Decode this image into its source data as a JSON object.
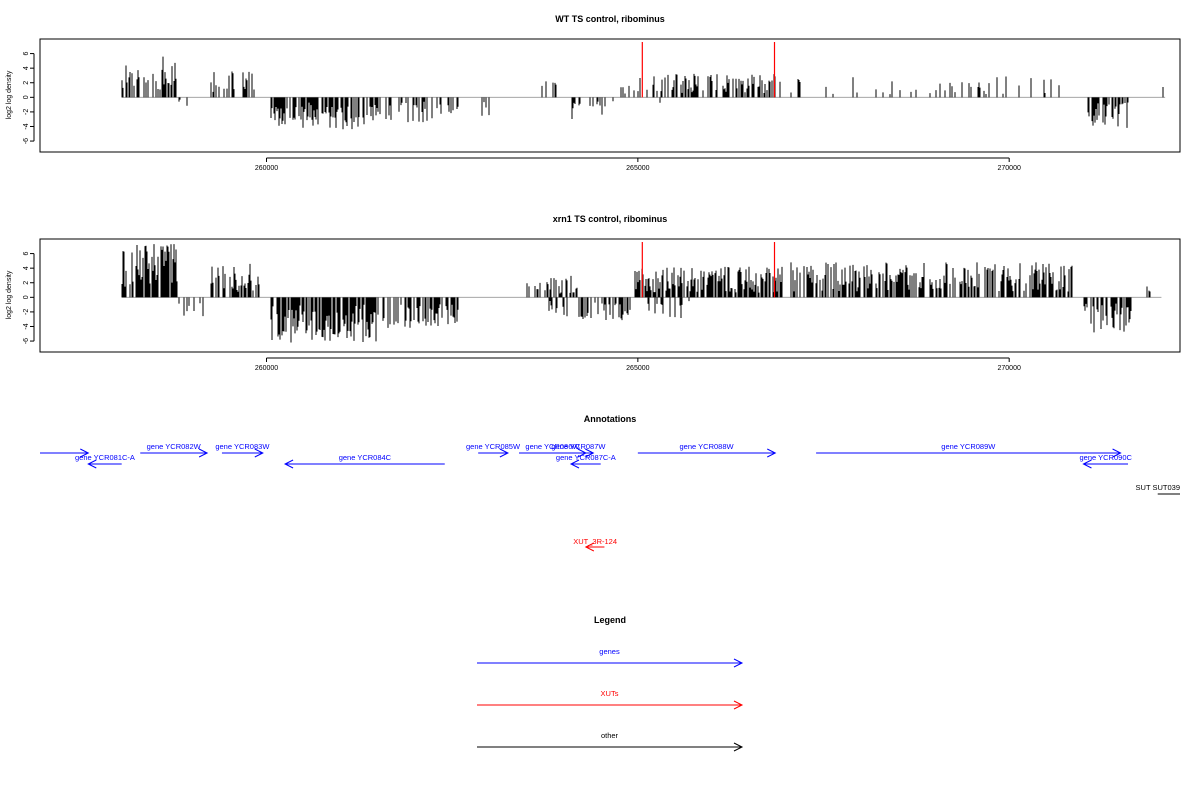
{
  "chart_data": [
    {
      "type": "bar",
      "title": "WT TS control, ribominus",
      "ylabel": "log2 log density",
      "xlabel": "",
      "xlim": [
        256950,
        272300
      ],
      "ylim": [
        -7.5,
        8
      ],
      "yticks": [
        -6,
        -4,
        -2,
        0,
        2,
        4,
        6
      ],
      "xticks": [
        260000,
        265000,
        270000
      ],
      "xtick_labels": [
        "260000",
        "265000",
        "270000"
      ],
      "xut_markers": [
        265060,
        266840
      ],
      "xut_color": "#ff0000",
      "bar_color": "#000000",
      "segments": [
        {
          "start": 258050,
          "end": 258820,
          "sign": 1,
          "max": 5.6,
          "density": 0.55,
          "seed": 11
        },
        {
          "start": 258820,
          "end": 258950,
          "sign": -1,
          "max": 1.2,
          "density": 0.25,
          "seed": 12
        },
        {
          "start": 259250,
          "end": 259900,
          "sign": 1,
          "max": 3.6,
          "density": 0.35,
          "seed": 13
        },
        {
          "start": 260050,
          "end": 261400,
          "sign": -1,
          "max": 4.4,
          "density": 0.6,
          "seed": 14
        },
        {
          "start": 261400,
          "end": 262600,
          "sign": -1,
          "max": 3.6,
          "density": 0.45,
          "seed": 15
        },
        {
          "start": 262900,
          "end": 263000,
          "sign": -1,
          "max": 3.2,
          "density": 0.3,
          "seed": 16
        },
        {
          "start": 263600,
          "end": 264000,
          "sign": 1,
          "max": 2.4,
          "density": 0.2,
          "seed": 17
        },
        {
          "start": 264100,
          "end": 264700,
          "sign": -1,
          "max": 3.2,
          "density": 0.4,
          "seed": 18
        },
        {
          "start": 264750,
          "end": 264950,
          "sign": 1,
          "max": 1.6,
          "density": 0.2,
          "seed": 19
        },
        {
          "start": 265000,
          "end": 266950,
          "sign": 1,
          "max": 3.4,
          "density": 0.5,
          "seed": 20
        },
        {
          "start": 265150,
          "end": 265400,
          "sign": -1,
          "max": 2.6,
          "density": 0.15,
          "seed": 21
        },
        {
          "start": 267000,
          "end": 270800,
          "sign": 1,
          "max": 2.9,
          "density": 0.12,
          "seed": 22
        },
        {
          "start": 271050,
          "end": 271600,
          "sign": -1,
          "max": 4.2,
          "density": 0.6,
          "seed": 23
        },
        {
          "start": 271900,
          "end": 272100,
          "sign": 1,
          "max": 1.8,
          "density": 0.12,
          "seed": 24
        }
      ]
    },
    {
      "type": "bar",
      "title": "xrn1 TS control, ribominus",
      "ylabel": "log2 log density",
      "xlabel": "",
      "xlim": [
        256950,
        272300
      ],
      "ylim": [
        -7.5,
        8
      ],
      "yticks": [
        -6,
        -4,
        -2,
        0,
        2,
        4,
        6
      ],
      "xticks": [
        260000,
        265000,
        270000
      ],
      "xtick_labels": [
        "260000",
        "265000",
        "270000"
      ],
      "xut_markers": [
        265060,
        266840
      ],
      "xut_color": "#ff0000",
      "bar_color": "#000000",
      "segments": [
        {
          "start": 258050,
          "end": 258820,
          "sign": 1,
          "max": 7.4,
          "density": 0.75,
          "seed": 31
        },
        {
          "start": 258820,
          "end": 259150,
          "sign": -1,
          "max": 2.6,
          "density": 0.35,
          "seed": 32
        },
        {
          "start": 259250,
          "end": 259900,
          "sign": 1,
          "max": 4.6,
          "density": 0.55,
          "seed": 33
        },
        {
          "start": 260050,
          "end": 261500,
          "sign": -1,
          "max": 6.2,
          "density": 0.75,
          "seed": 34
        },
        {
          "start": 261500,
          "end": 262600,
          "sign": -1,
          "max": 4.2,
          "density": 0.6,
          "seed": 35
        },
        {
          "start": 263500,
          "end": 264200,
          "sign": 1,
          "max": 3.0,
          "density": 0.4,
          "seed": 36
        },
        {
          "start": 263800,
          "end": 264050,
          "sign": -1,
          "max": 2.6,
          "density": 0.3,
          "seed": 37
        },
        {
          "start": 264200,
          "end": 264900,
          "sign": -1,
          "max": 3.4,
          "density": 0.6,
          "seed": 38
        },
        {
          "start": 264950,
          "end": 266950,
          "sign": 1,
          "max": 4.2,
          "density": 0.7,
          "seed": 39
        },
        {
          "start": 265100,
          "end": 265700,
          "sign": -1,
          "max": 2.9,
          "density": 0.25,
          "seed": 40
        },
        {
          "start": 267050,
          "end": 270850,
          "sign": 1,
          "max": 4.8,
          "density": 0.6,
          "seed": 41
        },
        {
          "start": 271000,
          "end": 271650,
          "sign": -1,
          "max": 5.0,
          "density": 0.7,
          "seed": 42
        },
        {
          "start": 271800,
          "end": 272050,
          "sign": 1,
          "max": 1.8,
          "density": 0.15,
          "seed": 43
        }
      ]
    }
  ],
  "annotations": {
    "title": "Annotations",
    "features": [
      {
        "label": "",
        "start": 256950,
        "end": 257600,
        "strand": "+",
        "color": "#0000ff",
        "row": 0
      },
      {
        "label": "gene YCR081C-A",
        "start": 257600,
        "end": 258050,
        "strand": "-",
        "color": "#0000ff",
        "row": 1
      },
      {
        "label": "gene YCR082W",
        "start": 258300,
        "end": 259200,
        "strand": "+",
        "color": "#0000ff",
        "row": 0
      },
      {
        "label": "gene YCR083W",
        "start": 259400,
        "end": 259950,
        "strand": "+",
        "color": "#0000ff",
        "row": 0
      },
      {
        "label": "gene YCR084C",
        "start": 260250,
        "end": 262400,
        "strand": "-",
        "color": "#0000ff",
        "row": 1
      },
      {
        "label": "gene YCR085W",
        "start": 262850,
        "end": 263250,
        "strand": "+",
        "color": "#0000ff",
        "row": 0
      },
      {
        "label": "gene YCR086W",
        "start": 263400,
        "end": 264300,
        "strand": "+",
        "color": "#0000ff",
        "row": 0
      },
      {
        "label": "gene YCR087W",
        "start": 264000,
        "end": 264400,
        "strand": "+",
        "color": "#0000ff",
        "row": 0
      },
      {
        "label": "gene YCR087C-A",
        "start": 264100,
        "end": 264500,
        "strand": "-",
        "color": "#0000ff",
        "row": 1
      },
      {
        "label": "gene YCR088W",
        "start": 265000,
        "end": 266850,
        "strand": "+",
        "color": "#0000ff",
        "row": 0
      },
      {
        "label": "gene YCR089W",
        "start": 267400,
        "end": 271500,
        "strand": "+",
        "color": "#0000ff",
        "row": 0
      },
      {
        "label": "gene YCR090C",
        "start": 271000,
        "end": 271600,
        "strand": "-",
        "color": "#0000ff",
        "row": 1
      },
      {
        "label": "SUT SUT039",
        "start": 272000,
        "end": 272950,
        "strand": ".",
        "color": "#000000",
        "row": 2
      },
      {
        "label": "XUT_3R-124",
        "start": 264300,
        "end": 264550,
        "strand": "-",
        "color": "#ff0000",
        "row": 3
      }
    ]
  },
  "legend": {
    "title": "Legend",
    "items": [
      {
        "label": "genes",
        "color": "#0000ff"
      },
      {
        "label": "XUTs",
        "color": "#ff0000"
      },
      {
        "label": "other",
        "color": "#000000"
      }
    ]
  }
}
